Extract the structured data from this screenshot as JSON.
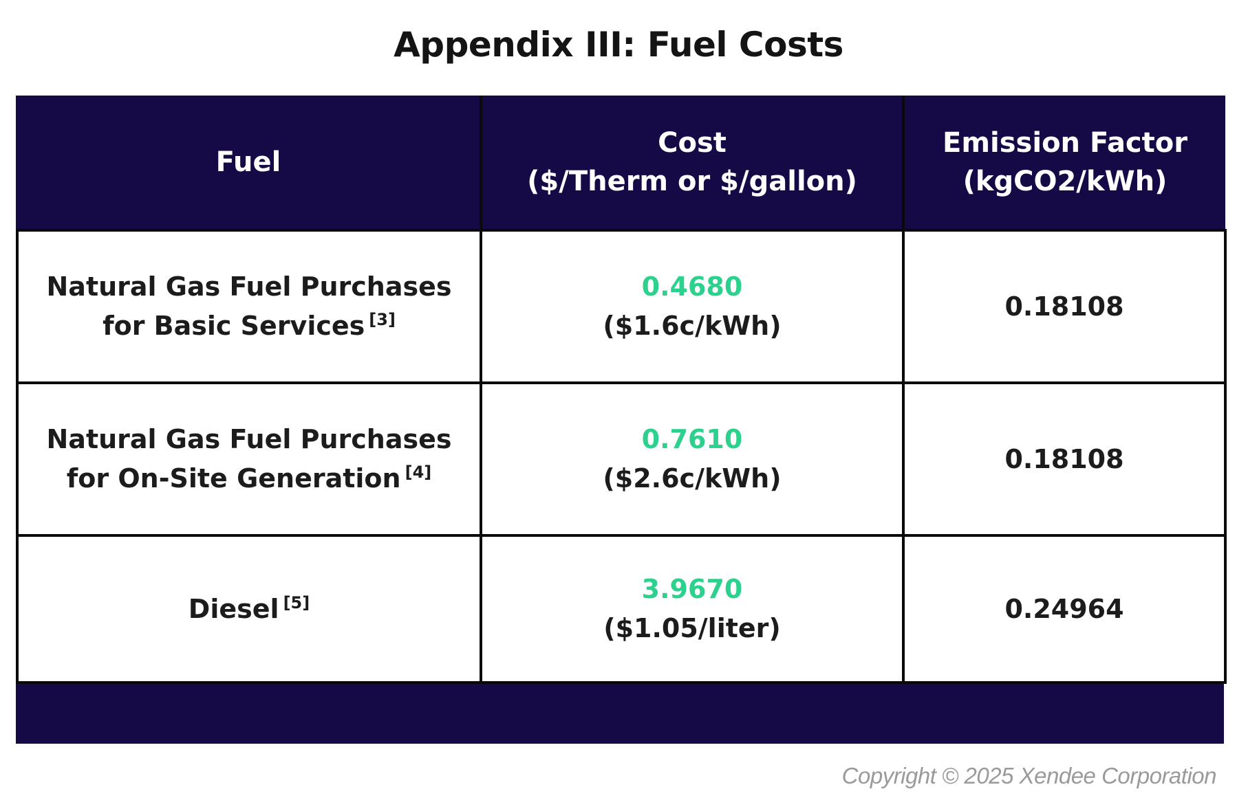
{
  "title": "Appendix III: Fuel Costs",
  "colors": {
    "header_bg": "#150a45",
    "cost_value": "#2bd18c",
    "copyright": "#9a9a9a"
  },
  "table": {
    "headers": [
      {
        "line1": "Fuel",
        "line2": ""
      },
      {
        "line1": "Cost",
        "line2": "($/Therm or $/gallon)"
      },
      {
        "line1": "Emission Factor",
        "line2": "(kgCO2/kWh)"
      }
    ],
    "rows": [
      {
        "fuel_line1": "Natural Gas Fuel Purchases",
        "fuel_line2": "for Basic Services",
        "fuel_ref": "[3]",
        "cost_value": "0.4680",
        "cost_sub": "($1.6c/kWh)",
        "emission": "0.18108"
      },
      {
        "fuel_line1": "Natural Gas Fuel Purchases",
        "fuel_line2": "for On-Site Generation",
        "fuel_ref": "[4]",
        "cost_value": "0.7610",
        "cost_sub": "($2.6c/kWh)",
        "emission": "0.18108"
      },
      {
        "fuel_line1": "Diesel",
        "fuel_line2": "",
        "fuel_ref": "[5]",
        "cost_value": "3.9670",
        "cost_sub": "($1.05/liter)",
        "emission": "0.24964"
      }
    ]
  },
  "copyright": "Copyright © 2025 Xendee Corporation"
}
